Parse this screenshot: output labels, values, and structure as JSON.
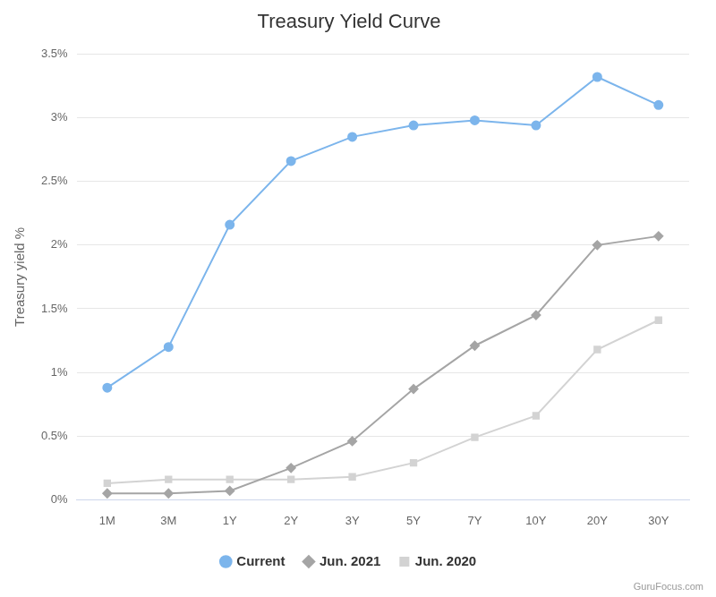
{
  "chart_data": {
    "type": "line",
    "title": "Treasury Yield Curve",
    "y_label": "Treasury yield %",
    "credit": "GuruFocus.com",
    "categories": [
      "1M",
      "3M",
      "1Y",
      "2Y",
      "3Y",
      "5Y",
      "7Y",
      "10Y",
      "20Y",
      "30Y"
    ],
    "series": [
      {
        "name": "Current",
        "color": "#7cb5ec",
        "marker": "circle",
        "values": [
          0.88,
          1.2,
          2.16,
          2.66,
          2.85,
          2.94,
          2.98,
          2.94,
          3.32,
          3.1
        ]
      },
      {
        "name": "Jun. 2021",
        "color": "#a5a5a5",
        "marker": "diamond",
        "values": [
          0.05,
          0.05,
          0.07,
          0.25,
          0.46,
          0.87,
          1.21,
          1.45,
          2.0,
          2.07
        ]
      },
      {
        "name": "Jun. 2020",
        "color": "#d3d3d3",
        "marker": "square",
        "values": [
          0.13,
          0.16,
          0.16,
          0.16,
          0.18,
          0.29,
          0.49,
          0.66,
          1.18,
          1.41
        ]
      }
    ],
    "ylim": [
      0,
      3.5
    ],
    "yticks": [
      {
        "value": 0,
        "label": "0%"
      },
      {
        "value": 0.5,
        "label": "0.5%"
      },
      {
        "value": 1,
        "label": "1%"
      },
      {
        "value": 1.5,
        "label": "1.5%"
      },
      {
        "value": 2,
        "label": "2%"
      },
      {
        "value": 2.5,
        "label": "2.5%"
      },
      {
        "value": 3,
        "label": "3%"
      },
      {
        "value": 3.5,
        "label": "3.5%"
      }
    ],
    "grid": "y",
    "legend": "bottom"
  }
}
